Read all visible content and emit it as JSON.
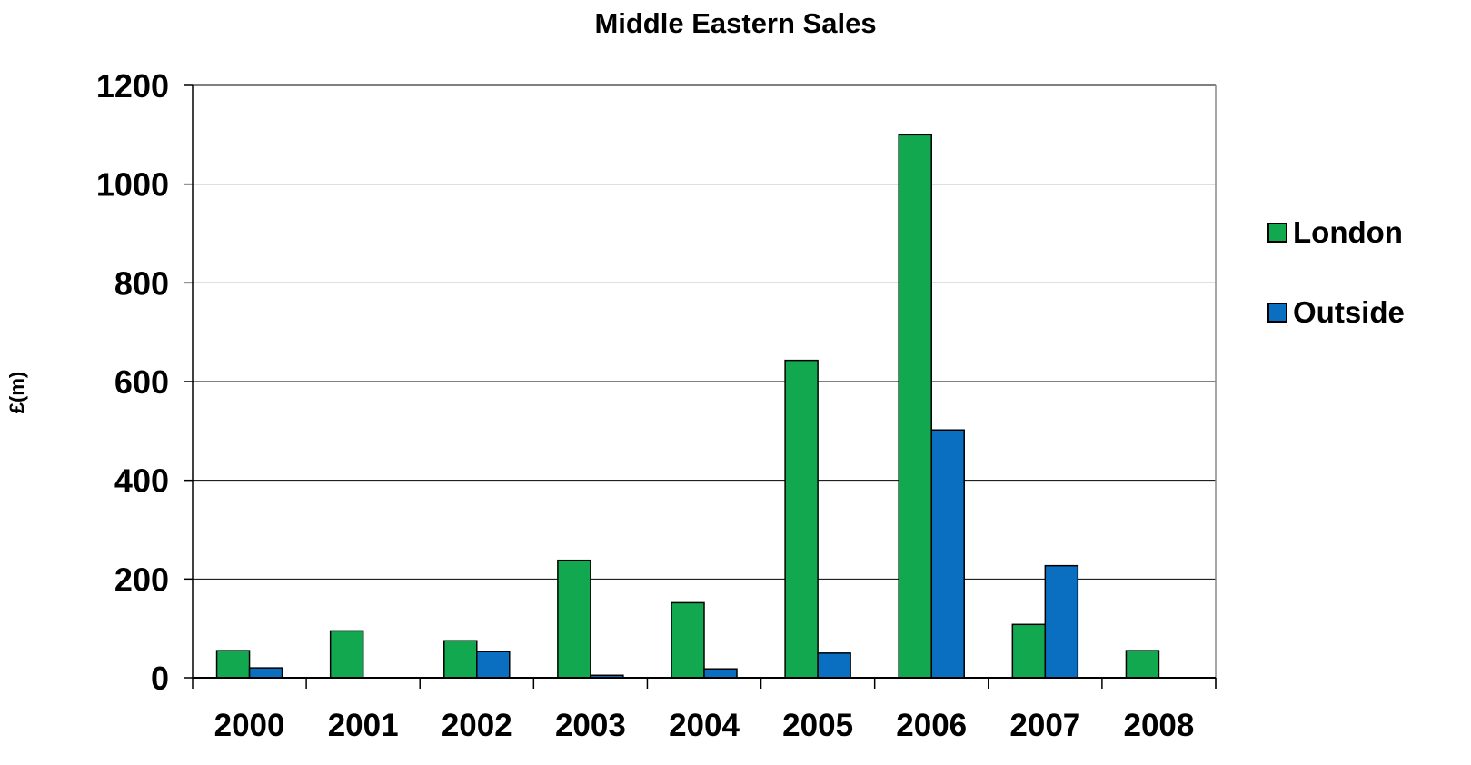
{
  "chart_data": {
    "type": "bar",
    "title": "Middle Eastern Sales",
    "xlabel": "",
    "ylabel": "£(m)",
    "categories": [
      "2000",
      "2001",
      "2002",
      "2003",
      "2004",
      "2005",
      "2006",
      "2007",
      "2008"
    ],
    "series": [
      {
        "name": "London",
        "color": "#12a84f",
        "values": [
          55,
          95,
          75,
          238,
          152,
          643,
          1100,
          108,
          55
        ]
      },
      {
        "name": "Outside",
        "color": "#0a6fc0",
        "values": [
          20,
          0,
          53,
          5,
          18,
          50,
          502,
          227,
          0
        ]
      }
    ],
    "ylim": [
      0,
      1200
    ],
    "yticks": [
      0,
      200,
      400,
      600,
      800,
      1000,
      1200
    ],
    "grid": true,
    "legend_position": "right"
  }
}
